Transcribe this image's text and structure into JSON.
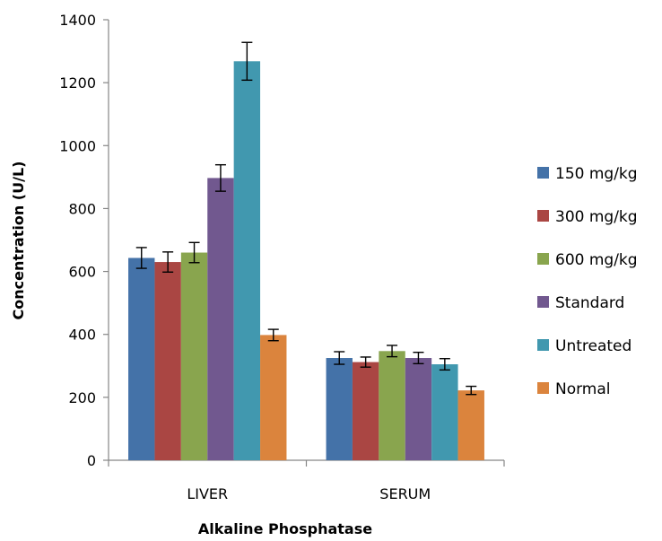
{
  "chart_data": {
    "type": "bar",
    "title": "",
    "xlabel": "Alkaline Phosphatase",
    "ylabel": "Concentration (U/L)",
    "ylim": [
      0,
      1400
    ],
    "yticks": [
      0,
      200,
      400,
      600,
      800,
      1000,
      1200,
      1400
    ],
    "categories": [
      "LIVER",
      "SERUM"
    ],
    "grid": false,
    "legend_position": "right",
    "series": [
      {
        "name": "150 mg/kg",
        "color": "#4472A8",
        "values": [
          643,
          325
        ],
        "errors": [
          33,
          20
        ]
      },
      {
        "name": "300 mg/kg",
        "color": "#AA4643",
        "values": [
          630,
          312
        ],
        "errors": [
          32,
          16
        ]
      },
      {
        "name": "600 mg/kg",
        "color": "#89A54E",
        "values": [
          660,
          347
        ],
        "errors": [
          32,
          18
        ]
      },
      {
        "name": "Standard",
        "color": "#71588F",
        "values": [
          897,
          325
        ],
        "errors": [
          42,
          18
        ]
      },
      {
        "name": "Untreated",
        "color": "#4198AF",
        "values": [
          1268,
          305
        ],
        "errors": [
          60,
          18
        ]
      },
      {
        "name": "Normal",
        "color": "#DB843D",
        "values": [
          398,
          222
        ],
        "errors": [
          18,
          13
        ]
      }
    ]
  }
}
